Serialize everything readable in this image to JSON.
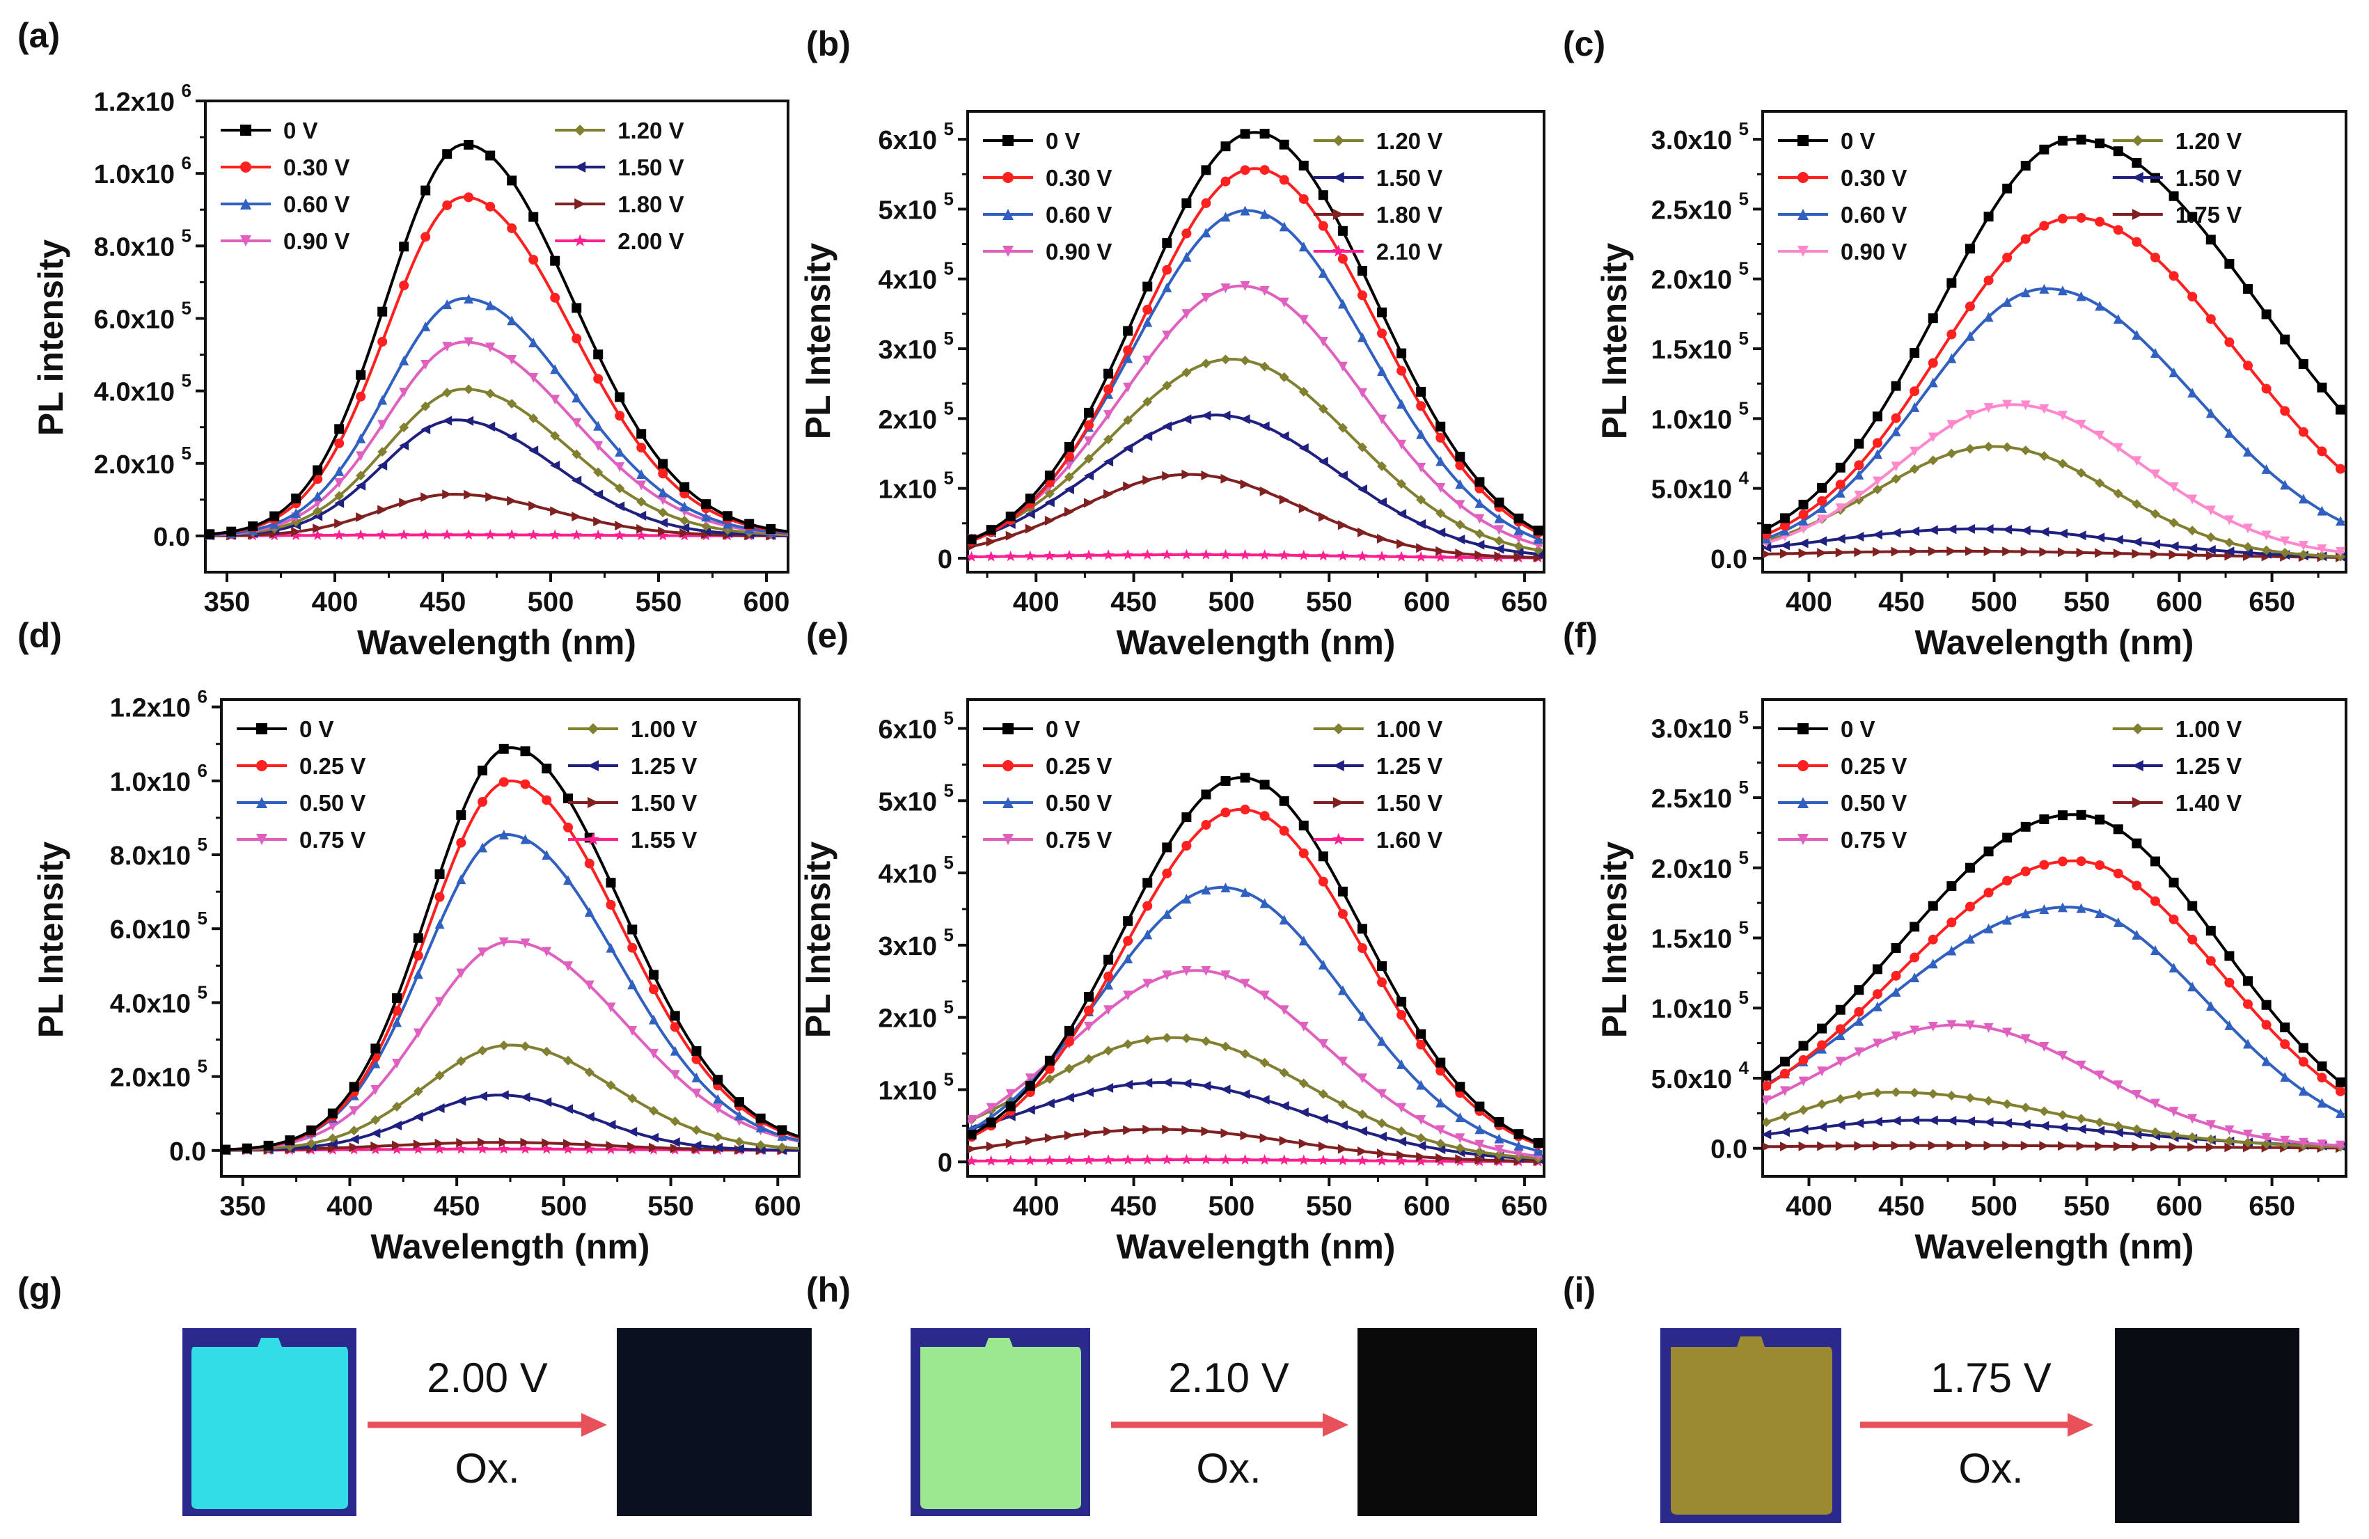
{
  "chart_data": [
    {
      "id": "a",
      "type": "line",
      "panel_label": "(a)",
      "xlabel": "Wavelength (nm)",
      "ylabel": "PL intensity",
      "xlim": [
        340,
        610
      ],
      "ylim": [
        -0.1,
        1.2
      ],
      "y_scale_exp": 6,
      "xticks": [
        350,
        400,
        450,
        500,
        550,
        600
      ],
      "yticks": [
        {
          "v": 0,
          "m": "0.0",
          "e": ""
        },
        {
          "v": 0.2,
          "m": "2.0x10",
          "e": "5"
        },
        {
          "v": 0.4,
          "m": "4.0x10",
          "e": "5"
        },
        {
          "v": 0.6,
          "m": "6.0x10",
          "e": "5"
        },
        {
          "v": 0.8,
          "m": "8.0x10",
          "e": "5"
        },
        {
          "v": 1.0,
          "m": "1.0x10",
          "e": "6"
        },
        {
          "v": 1.2,
          "m": "1.2x10",
          "e": "6"
        }
      ],
      "series": [
        {
          "name": "0 V",
          "color": "#000000",
          "marker": "square",
          "peak": 1.08,
          "center": 460,
          "sw_left": 36,
          "sw_right": 50
        },
        {
          "name": "0.30 V",
          "color": "#ff2020",
          "marker": "circle",
          "peak": 0.935,
          "center": 460,
          "sw_left": 36,
          "sw_right": 50
        },
        {
          "name": "0.60 V",
          "color": "#3060c0",
          "marker": "triangle-up",
          "peak": 0.655,
          "center": 460,
          "sw_left": 36,
          "sw_right": 50
        },
        {
          "name": "0.90 V",
          "color": "#e060c0",
          "marker": "triangle-down",
          "peak": 0.535,
          "center": 460,
          "sw_left": 36,
          "sw_right": 50
        },
        {
          "name": "1.20 V",
          "color": "#808030",
          "marker": "diamond",
          "peak": 0.405,
          "center": 460,
          "sw_left": 36,
          "sw_right": 48
        },
        {
          "name": "1.50 V",
          "color": "#202080",
          "marker": "triangle-left",
          "peak": 0.32,
          "center": 456,
          "sw_left": 34,
          "sw_right": 46
        },
        {
          "name": "1.80 V",
          "color": "#802020",
          "marker": "triangle-right",
          "peak": 0.115,
          "center": 455,
          "sw_left": 34,
          "sw_right": 46
        },
        {
          "name": "2.00 V",
          "color": "#ff2090",
          "marker": "star",
          "peak": 0.003,
          "center": 460,
          "sw_left": 60,
          "sw_right": 60
        }
      ]
    },
    {
      "id": "b",
      "type": "line",
      "panel_label": "(b)",
      "xlabel": "Wavelength (nm)",
      "ylabel": "PL Intensity",
      "xlim": [
        365,
        660
      ],
      "ylim": [
        -0.2,
        6.4
      ],
      "y_scale_exp": 5,
      "xticks": [
        400,
        450,
        500,
        550,
        600,
        650
      ],
      "yticks": [
        {
          "v": 0,
          "m": "0",
          "e": ""
        },
        {
          "v": 1,
          "m": "1x10",
          "e": "5"
        },
        {
          "v": 2,
          "m": "2x10",
          "e": "5"
        },
        {
          "v": 3,
          "m": "3x10",
          "e": "5"
        },
        {
          "v": 4,
          "m": "4x10",
          "e": "5"
        },
        {
          "v": 5,
          "m": "5x10",
          "e": "5"
        },
        {
          "v": 6,
          "m": "6x10",
          "e": "5"
        }
      ],
      "series": [
        {
          "name": "0 V",
          "color": "#000000",
          "marker": "square",
          "peak": 6.1,
          "center": 512,
          "sw_left": 58,
          "sw_right": 62
        },
        {
          "name": "0.30 V",
          "color": "#ff2020",
          "marker": "circle",
          "peak": 5.58,
          "center": 512,
          "sw_left": 58,
          "sw_right": 62
        },
        {
          "name": "0.60 V",
          "color": "#3060c0",
          "marker": "triangle-up",
          "peak": 4.98,
          "center": 508,
          "sw_left": 58,
          "sw_right": 62
        },
        {
          "name": "0.90 V",
          "color": "#e060c0",
          "marker": "triangle-down",
          "peak": 3.9,
          "center": 505,
          "sw_left": 60,
          "sw_right": 62
        },
        {
          "name": "1.20 V",
          "color": "#808030",
          "marker": "diamond",
          "peak": 2.85,
          "center": 500,
          "sw_left": 62,
          "sw_right": 62
        },
        {
          "name": "1.50 V",
          "color": "#202080",
          "marker": "triangle-left",
          "peak": 2.05,
          "center": 492,
          "sw_left": 62,
          "sw_right": 62
        },
        {
          "name": "1.80 V",
          "color": "#802020",
          "marker": "triangle-right",
          "peak": 1.2,
          "center": 478,
          "sw_left": 56,
          "sw_right": 58
        },
        {
          "name": "2.10 V",
          "color": "#ff2090",
          "marker": "star",
          "peak": 0.05,
          "center": 480,
          "sw_left": 80,
          "sw_right": 80
        }
      ]
    },
    {
      "id": "c",
      "type": "line",
      "panel_label": "(c)",
      "xlabel": "Wavelength (nm)",
      "ylabel": "PL Intensity",
      "xlim": [
        375,
        690
      ],
      "ylim": [
        -0.1,
        3.2
      ],
      "y_scale_exp": 5,
      "xticks": [
        400,
        450,
        500,
        550,
        600,
        650
      ],
      "yticks": [
        {
          "v": 0,
          "m": "0.0",
          "e": ""
        },
        {
          "v": 0.5,
          "m": "5.0x10",
          "e": "4"
        },
        {
          "v": 1.0,
          "m": "1.0x10",
          "e": "5"
        },
        {
          "v": 1.5,
          "m": "1.5x10",
          "e": "5"
        },
        {
          "v": 2.0,
          "m": "2.0x10",
          "e": "5"
        },
        {
          "v": 2.5,
          "m": "2.5x10",
          "e": "5"
        },
        {
          "v": 3.0,
          "m": "3.0x10",
          "e": "5"
        }
      ],
      "series": [
        {
          "name": "0 V",
          "color": "#000000",
          "marker": "square",
          "peak": 3.0,
          "center": 543,
          "sw_left": 72,
          "sw_right": 100
        },
        {
          "name": "0.30 V",
          "color": "#ff2020",
          "marker": "circle",
          "peak": 2.44,
          "center": 543,
          "sw_left": 72,
          "sw_right": 88
        },
        {
          "name": "0.60 V",
          "color": "#3060c0",
          "marker": "triangle-up",
          "peak": 1.93,
          "center": 528,
          "sw_left": 66,
          "sw_right": 80
        },
        {
          "name": "0.90 V",
          "color": "#ff88cc",
          "marker": "triangle-down",
          "peak": 1.1,
          "center": 510,
          "sw_left": 62,
          "sw_right": 70
        },
        {
          "name": "1.20 V",
          "color": "#808030",
          "marker": "diamond",
          "peak": 0.8,
          "center": 500,
          "sw_left": 64,
          "sw_right": 64
        },
        {
          "name": "1.50 V",
          "color": "#202080",
          "marker": "triangle-left",
          "peak": 0.21,
          "center": 490,
          "sw_left": 80,
          "sw_right": 80
        },
        {
          "name": "1.75 V",
          "color": "#802020",
          "marker": "triangle-right",
          "peak": 0.05,
          "center": 480,
          "sw_left": 100,
          "sw_right": 100
        }
      ]
    },
    {
      "id": "d",
      "type": "line",
      "panel_label": "(d)",
      "xlabel": "Wavelength (nm)",
      "ylabel": "PL Intensity",
      "xlim": [
        340,
        610
      ],
      "ylim": [
        -0.07,
        1.22
      ],
      "y_scale_exp": 6,
      "xticks": [
        350,
        400,
        450,
        500,
        550,
        600
      ],
      "yticks": [
        {
          "v": 0,
          "m": "0.0",
          "e": ""
        },
        {
          "v": 0.2,
          "m": "2.0x10",
          "e": "5"
        },
        {
          "v": 0.4,
          "m": "4.0x10",
          "e": "5"
        },
        {
          "v": 0.6,
          "m": "6.0x10",
          "e": "5"
        },
        {
          "v": 0.8,
          "m": "8.0x10",
          "e": "5"
        },
        {
          "v": 1.0,
          "m": "1.0x10",
          "e": "6"
        },
        {
          "v": 1.2,
          "m": "1.2x10",
          "e": "6"
        }
      ],
      "series": [
        {
          "name": "0 V",
          "color": "#000000",
          "marker": "square",
          "peak": 1.09,
          "center": 475,
          "sw_left": 38,
          "sw_right": 52
        },
        {
          "name": "0.25 V",
          "color": "#ff2020",
          "marker": "circle",
          "peak": 1.0,
          "center": 475,
          "sw_left": 38,
          "sw_right": 52
        },
        {
          "name": "0.50 V",
          "color": "#3060c0",
          "marker": "triangle-up",
          "peak": 0.855,
          "center": 473,
          "sw_left": 38,
          "sw_right": 52
        },
        {
          "name": "0.75 V",
          "color": "#e060c0",
          "marker": "triangle-down",
          "peak": 0.565,
          "center": 475,
          "sw_left": 40,
          "sw_right": 54
        },
        {
          "name": "1.00 V",
          "color": "#808030",
          "marker": "diamond",
          "peak": 0.285,
          "center": 475,
          "sw_left": 40,
          "sw_right": 48
        },
        {
          "name": "1.25 V",
          "color": "#202080",
          "marker": "triangle-left",
          "peak": 0.15,
          "center": 470,
          "sw_left": 38,
          "sw_right": 42
        },
        {
          "name": "1.50 V",
          "color": "#802020",
          "marker": "triangle-right",
          "peak": 0.022,
          "center": 470,
          "sw_left": 50,
          "sw_right": 50
        },
        {
          "name": "1.55 V",
          "color": "#ff2090",
          "marker": "star",
          "peak": 0.004,
          "center": 470,
          "sw_left": 60,
          "sw_right": 60
        }
      ]
    },
    {
      "id": "e",
      "type": "line",
      "panel_label": "(e)",
      "xlabel": "Wavelength (nm)",
      "ylabel": "PL Intensity",
      "xlim": [
        365,
        660
      ],
      "ylim": [
        -0.2,
        6.4
      ],
      "y_scale_exp": 5,
      "xticks": [
        400,
        450,
        500,
        550,
        600,
        650
      ],
      "yticks": [
        {
          "v": 0,
          "m": "0",
          "e": ""
        },
        {
          "v": 1,
          "m": "1x10",
          "e": "5"
        },
        {
          "v": 2,
          "m": "2x10",
          "e": "5"
        },
        {
          "v": 3,
          "m": "3x10",
          "e": "5"
        },
        {
          "v": 4,
          "m": "4x10",
          "e": "5"
        },
        {
          "v": 5,
          "m": "5x10",
          "e": "5"
        },
        {
          "v": 6,
          "m": "6x10",
          "e": "5"
        }
      ],
      "series": [
        {
          "name": "0 V",
          "color": "#000000",
          "marker": "square",
          "peak": 5.32,
          "center": 505,
          "sw_left": 60,
          "sw_right": 62
        },
        {
          "name": "0.25 V",
          "color": "#ff2020",
          "marker": "circle",
          "peak": 4.88,
          "center": 505,
          "sw_left": 60,
          "sw_right": 62
        },
        {
          "name": "0.50 V",
          "color": "#3060c0",
          "marker": "triangle-up",
          "peak": 3.8,
          "center": 495,
          "sw_left": 62,
          "sw_right": 64
        },
        {
          "name": "0.75 V",
          "color": "#e060c0",
          "marker": "triangle-down",
          "peak": 2.65,
          "center": 482,
          "sw_left": 66,
          "sw_right": 66
        },
        {
          "name": "1.00 V",
          "color": "#808030",
          "marker": "diamond",
          "peak": 1.72,
          "center": 470,
          "sw_left": 70,
          "sw_right": 70
        },
        {
          "name": "1.25 V",
          "color": "#202080",
          "marker": "triangle-left",
          "peak": 1.1,
          "center": 465,
          "sw_left": 74,
          "sw_right": 74
        },
        {
          "name": "1.50 V",
          "color": "#802020",
          "marker": "triangle-right",
          "peak": 0.45,
          "center": 462,
          "sw_left": 70,
          "sw_right": 70
        },
        {
          "name": "1.60 V",
          "color": "#ff2090",
          "marker": "star",
          "peak": 0.03,
          "center": 480,
          "sw_left": 80,
          "sw_right": 80
        }
      ]
    },
    {
      "id": "f",
      "type": "line",
      "panel_label": "(f)",
      "xlabel": "Wavelength (nm)",
      "ylabel": "PL Intensity",
      "xlim": [
        375,
        690
      ],
      "ylim": [
        -0.2,
        3.2
      ],
      "y_scale_exp": 5,
      "xticks": [
        400,
        450,
        500,
        550,
        600,
        650
      ],
      "yticks": [
        {
          "v": 0,
          "m": "0.0",
          "e": ""
        },
        {
          "v": 0.5,
          "m": "5.0x10",
          "e": "4"
        },
        {
          "v": 1.0,
          "m": "1.0x10",
          "e": "5"
        },
        {
          "v": 1.5,
          "m": "1.5x10",
          "e": "5"
        },
        {
          "v": 2.0,
          "m": "2.0x10",
          "e": "5"
        },
        {
          "v": 2.5,
          "m": "2.5x10",
          "e": "5"
        },
        {
          "v": 3.0,
          "m": "3.0x10",
          "e": "5"
        }
      ],
      "series": [
        {
          "name": "0 V",
          "color": "#000000",
          "marker": "square",
          "peak": 2.38,
          "center": 543,
          "sw_left": 95,
          "sw_right": 80
        },
        {
          "name": "0.25 V",
          "color": "#ff2020",
          "marker": "circle",
          "peak": 2.05,
          "center": 543,
          "sw_left": 95,
          "sw_right": 80
        },
        {
          "name": "0.50 V",
          "color": "#3060c0",
          "marker": "triangle-up",
          "peak": 1.72,
          "center": 540,
          "sw_left": 100,
          "sw_right": 75
        },
        {
          "name": "0.75 V",
          "color": "#e060c0",
          "marker": "triangle-down",
          "peak": 0.88,
          "center": 480,
          "sw_left": 75,
          "sw_right": 75
        },
        {
          "name": "1.00 V",
          "color": "#808030",
          "marker": "diamond",
          "peak": 0.4,
          "center": 445,
          "sw_left": 55,
          "sw_right": 90
        },
        {
          "name": "1.25 V",
          "color": "#202080",
          "marker": "triangle-left",
          "peak": 0.2,
          "center": 460,
          "sw_left": 70,
          "sw_right": 100
        },
        {
          "name": "1.40 V",
          "color": "#802020",
          "marker": "triangle-right",
          "peak": 0.02,
          "center": 480,
          "sw_left": 100,
          "sw_right": 100
        }
      ]
    }
  ],
  "photos": [
    {
      "id": "g",
      "panel_label": "(g)",
      "voltage_label": "2.00 V",
      "ox_label": "Ox.",
      "before_color": "#33dde8",
      "after_color": "#0b1020"
    },
    {
      "id": "h",
      "panel_label": "(h)",
      "voltage_label": "2.10 V",
      "ox_label": "Ox.",
      "before_color": "#9be890",
      "after_color": "#0a0a0a"
    },
    {
      "id": "i",
      "panel_label": "(i)",
      "voltage_label": "1.75 V",
      "ox_label": "Ox.",
      "before_color": "#9c8a30",
      "after_color": "#0a0c14"
    }
  ],
  "colors": {
    "arrow": "#e8505a",
    "photo_frame": "#2a2a8c"
  }
}
